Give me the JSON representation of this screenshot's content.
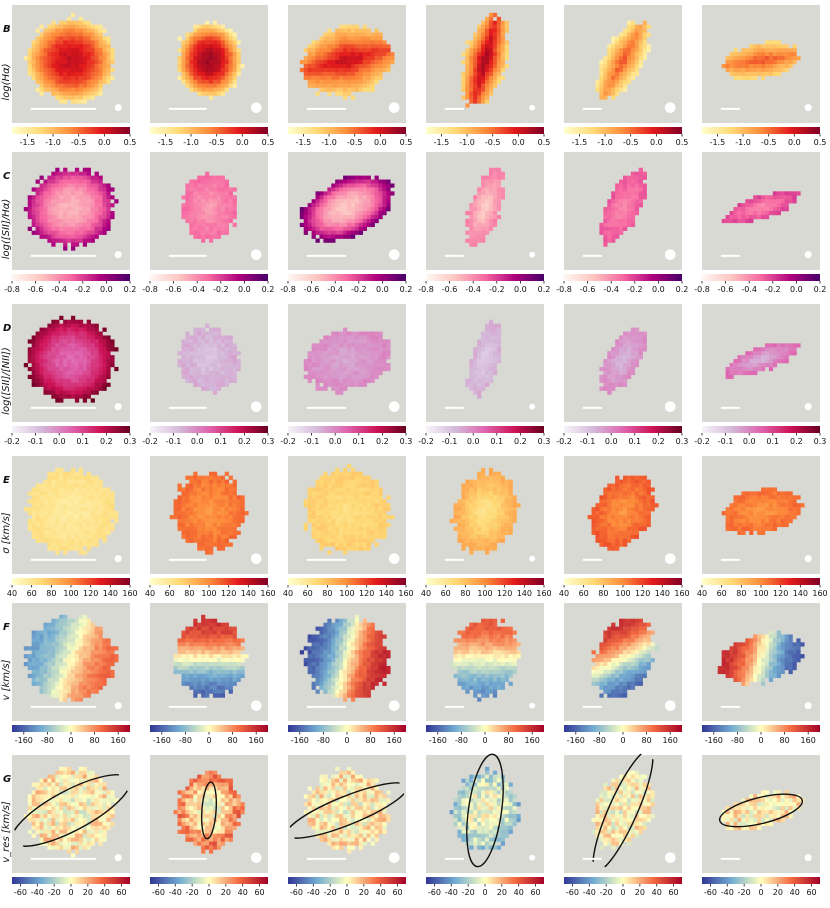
{
  "colors": {
    "panel_bg": "#d9d9d3",
    "scalebar": "#ffffff",
    "beam": "#ffffff",
    "ellipse": "#111111"
  },
  "chart_data": {
    "type": "heatmap",
    "layout": {
      "rows": 6,
      "columns": 6
    },
    "rows": [
      {
        "letter": "B",
        "label": "log(Hα)",
        "colormap": "YlOrRd",
        "stops": [
          "#ffffcc",
          "#fed976",
          "#fd8d3c",
          "#e31a1c",
          "#800026"
        ],
        "range": [
          -1.8,
          0.5
        ],
        "ticks": [
          "-1.5",
          "-1.0",
          "-0.5",
          "0.0",
          "0.5"
        ],
        "tick_values": [
          -1.5,
          -1.0,
          -0.5,
          0.0,
          0.5
        ],
        "maps": [
          {
            "shape": "disk",
            "rx": 0.38,
            "ry": 0.36,
            "angle": 0,
            "pattern": "peak",
            "center_value": 0.1,
            "edge_value": -1.4
          },
          {
            "shape": "disk",
            "rx": 0.28,
            "ry": 0.32,
            "angle": 0,
            "pattern": "peak",
            "center_value": 0.3,
            "edge_value": -1.5
          },
          {
            "shape": "ellipse",
            "rx": 0.4,
            "ry": 0.3,
            "angle": -15,
            "pattern": "band",
            "center_value": 0.2,
            "edge_value": -1.2
          },
          {
            "shape": "ellipse",
            "rx": 0.4,
            "ry": 0.18,
            "angle": -75,
            "pattern": "band",
            "center_value": 0.4,
            "edge_value": -1.2
          },
          {
            "shape": "ellipse",
            "rx": 0.36,
            "ry": 0.17,
            "angle": -62,
            "pattern": "band",
            "center_value": -0.3,
            "edge_value": -1.5
          },
          {
            "shape": "ellipse",
            "rx": 0.33,
            "ry": 0.15,
            "angle": -8,
            "pattern": "band",
            "center_value": -0.3,
            "edge_value": -1.2
          }
        ]
      },
      {
        "letter": "C",
        "label": "log([SII]/Hα)",
        "colormap": "RdPu",
        "stops": [
          "#fff7f3",
          "#fcc5c0",
          "#f768a1",
          "#ae017e",
          "#49006a"
        ],
        "range": [
          -0.8,
          0.2
        ],
        "ticks": [
          "-0.8",
          "-0.6",
          "-0.4",
          "-0.2",
          "0.0",
          "0.2"
        ],
        "tick_values": [
          -0.8,
          -0.6,
          -0.4,
          -0.2,
          0.0,
          0.2
        ],
        "maps": [
          {
            "shape": "disk",
            "rx": 0.38,
            "ry": 0.34,
            "angle": -15,
            "pattern": "edge_high",
            "center_value": -0.5,
            "edge_value": 0.0
          },
          {
            "shape": "disk",
            "rx": 0.24,
            "ry": 0.28,
            "angle": 0,
            "pattern": "flat",
            "center_value": -0.45,
            "edge_value": -0.3
          },
          {
            "shape": "ellipse",
            "rx": 0.42,
            "ry": 0.24,
            "angle": -25,
            "pattern": "edge_high",
            "center_value": -0.55,
            "edge_value": 0.1
          },
          {
            "shape": "ellipse",
            "rx": 0.34,
            "ry": 0.13,
            "angle": -72,
            "pattern": "flat",
            "center_value": -0.6,
            "edge_value": -0.35
          },
          {
            "shape": "ellipse",
            "rx": 0.34,
            "ry": 0.14,
            "angle": -62,
            "pattern": "flat",
            "center_value": -0.4,
            "edge_value": -0.25
          },
          {
            "shape": "ellipse",
            "rx": 0.33,
            "ry": 0.1,
            "angle": -18,
            "pattern": "flat",
            "center_value": -0.4,
            "edge_value": -0.2
          }
        ]
      },
      {
        "letter": "D",
        "label": "log([SII]/[NII])",
        "colormap": "PuRd",
        "stops": [
          "#f7f4f9",
          "#d4b9da",
          "#df65b0",
          "#ce1256",
          "#67001f"
        ],
        "range": [
          -0.2,
          0.3
        ],
        "ticks": [
          "-0.2",
          "-0.1",
          "0.0",
          "0.1",
          "0.2",
          "0.3"
        ],
        "tick_values": [
          -0.2,
          -0.1,
          0.0,
          0.1,
          0.2,
          0.3
        ],
        "maps": [
          {
            "shape": "disk",
            "rx": 0.38,
            "ry": 0.36,
            "angle": 0,
            "pattern": "edge_high",
            "center_value": 0.05,
            "edge_value": 0.28
          },
          {
            "shape": "disk",
            "rx": 0.26,
            "ry": 0.28,
            "angle": 0,
            "pattern": "flat",
            "center_value": -0.1,
            "edge_value": -0.05
          },
          {
            "shape": "ellipse",
            "rx": 0.38,
            "ry": 0.26,
            "angle": -15,
            "pattern": "flat",
            "center_value": -0.05,
            "edge_value": 0.0
          },
          {
            "shape": "ellipse",
            "rx": 0.34,
            "ry": 0.12,
            "angle": -75,
            "pattern": "flat",
            "center_value": -0.12,
            "edge_value": -0.05
          },
          {
            "shape": "ellipse",
            "rx": 0.32,
            "ry": 0.14,
            "angle": -60,
            "pattern": "flat",
            "center_value": -0.08,
            "edge_value": 0.0
          },
          {
            "shape": "ellipse",
            "rx": 0.34,
            "ry": 0.1,
            "angle": -20,
            "pattern": "flat",
            "center_value": -0.08,
            "edge_value": 0.05
          }
        ]
      },
      {
        "letter": "E",
        "label": "σ [km/s]",
        "colormap": "YlOrRd",
        "stops": [
          "#ffffcc",
          "#fed976",
          "#fd8d3c",
          "#e31a1c",
          "#800026"
        ],
        "range": [
          40,
          160
        ],
        "ticks": [
          "40",
          "60",
          "80",
          "100",
          "120",
          "140",
          "160"
        ],
        "tick_values": [
          40,
          60,
          80,
          100,
          120,
          140,
          160
        ],
        "maps": [
          {
            "shape": "disk",
            "rx": 0.38,
            "ry": 0.36,
            "angle": 0,
            "pattern": "flat",
            "center_value": 55,
            "edge_value": 65
          },
          {
            "shape": "disk",
            "rx": 0.3,
            "ry": 0.34,
            "angle": 0,
            "pattern": "flat",
            "center_value": 95,
            "edge_value": 110
          },
          {
            "shape": "disk",
            "rx": 0.36,
            "ry": 0.36,
            "angle": 0,
            "pattern": "flat",
            "center_value": 65,
            "edge_value": 75
          },
          {
            "shape": "ellipse",
            "rx": 0.36,
            "ry": 0.26,
            "angle": -75,
            "pattern": "flat",
            "center_value": 60,
            "edge_value": 90
          },
          {
            "shape": "ellipse",
            "rx": 0.34,
            "ry": 0.24,
            "angle": -60,
            "pattern": "flat",
            "center_value": 95,
            "edge_value": 115
          },
          {
            "shape": "ellipse",
            "rx": 0.34,
            "ry": 0.18,
            "angle": -10,
            "pattern": "flat",
            "center_value": 95,
            "edge_value": 110
          }
        ]
      },
      {
        "letter": "F",
        "label": "v [km/s]",
        "colormap": "RdYlBu_r",
        "stops": [
          "#313695",
          "#74add1",
          "#ffffbf",
          "#f46d43",
          "#a50026"
        ],
        "range": [
          -200,
          200
        ],
        "ticks": [
          "-160",
          "-80",
          "0",
          "80",
          "160"
        ],
        "tick_values": [
          -160,
          -80,
          0,
          80,
          160
        ],
        "maps": [
          {
            "shape": "disk",
            "rx": 0.38,
            "ry": 0.36,
            "angle": 0,
            "pattern": "gradient",
            "gradient_angle": 20,
            "max_value": 120
          },
          {
            "shape": "disk",
            "rx": 0.3,
            "ry": 0.34,
            "angle": 0,
            "pattern": "gradient",
            "gradient_angle": -90,
            "max_value": 180
          },
          {
            "shape": "disk",
            "rx": 0.36,
            "ry": 0.36,
            "angle": 0,
            "pattern": "gradient",
            "gradient_angle": 15,
            "max_value": 190
          },
          {
            "shape": "ellipse",
            "rx": 0.34,
            "ry": 0.28,
            "angle": -80,
            "pattern": "gradient",
            "gradient_angle": -90,
            "max_value": 140
          },
          {
            "shape": "ellipse",
            "rx": 0.36,
            "ry": 0.24,
            "angle": -65,
            "pattern": "gradient",
            "gradient_angle": -115,
            "max_value": 190
          },
          {
            "shape": "ellipse",
            "rx": 0.36,
            "ry": 0.2,
            "angle": -15,
            "pattern": "gradient",
            "gradient_angle": 195,
            "max_value": 190
          }
        ]
      },
      {
        "letter": "G",
        "label": "v_res [km/s]",
        "colormap": "RdYlBu_r",
        "stops": [
          "#313695",
          "#74add1",
          "#ffffbf",
          "#f46d43",
          "#a50026"
        ],
        "range": [
          -70,
          70
        ],
        "ticks": [
          "-60",
          "-40",
          "-20",
          "0",
          "20",
          "40",
          "60"
        ],
        "tick_values": [
          -60,
          -40,
          -20,
          0,
          20,
          40,
          60
        ],
        "ellipses": true,
        "maps": [
          {
            "shape": "disk",
            "rx": 0.38,
            "ry": 0.36,
            "angle": 0,
            "pattern": "noise",
            "center_value": 0,
            "edge_value": 10,
            "ellipse": {
              "rx": 0.56,
              "ry": 0.17,
              "angle": -28
            }
          },
          {
            "shape": "disk",
            "rx": 0.28,
            "ry": 0.33,
            "angle": 0,
            "pattern": "noise",
            "center_value": 0,
            "edge_value": 40,
            "ellipse": {
              "rx": 0.24,
              "ry": 0.06,
              "angle": -86
            }
          },
          {
            "shape": "disk",
            "rx": 0.36,
            "ry": 0.34,
            "angle": 0,
            "pattern": "noise",
            "center_value": 0,
            "edge_value": 10,
            "ellipse": {
              "rx": 0.55,
              "ry": 0.12,
              "angle": -22
            }
          },
          {
            "shape": "ellipse",
            "rx": 0.34,
            "ry": 0.28,
            "angle": -80,
            "pattern": "noise",
            "center_value": 0,
            "edge_value": -25,
            "ellipse": {
              "rx": 0.48,
              "ry": 0.14,
              "angle": -82
            }
          },
          {
            "shape": "ellipse",
            "rx": 0.34,
            "ry": 0.24,
            "angle": -62,
            "pattern": "noise",
            "center_value": 0,
            "edge_value": 5,
            "ellipse": {
              "rx": 0.56,
              "ry": 0.12,
              "angle": -66
            }
          },
          {
            "shape": "ellipse",
            "rx": 0.36,
            "ry": 0.14,
            "angle": -15,
            "pattern": "noise",
            "center_value": 0,
            "edge_value": 10,
            "ellipse": {
              "rx": 0.36,
              "ry": 0.11,
              "angle": -14
            }
          }
        ]
      }
    ],
    "panel_extras": {
      "scalebar_fraction": [
        0.55,
        0.32,
        0.33,
        0.16,
        0.16,
        0.16
      ],
      "beam_fraction": [
        0.06,
        0.09,
        0.09,
        0.05,
        0.09,
        0.06
      ]
    }
  }
}
